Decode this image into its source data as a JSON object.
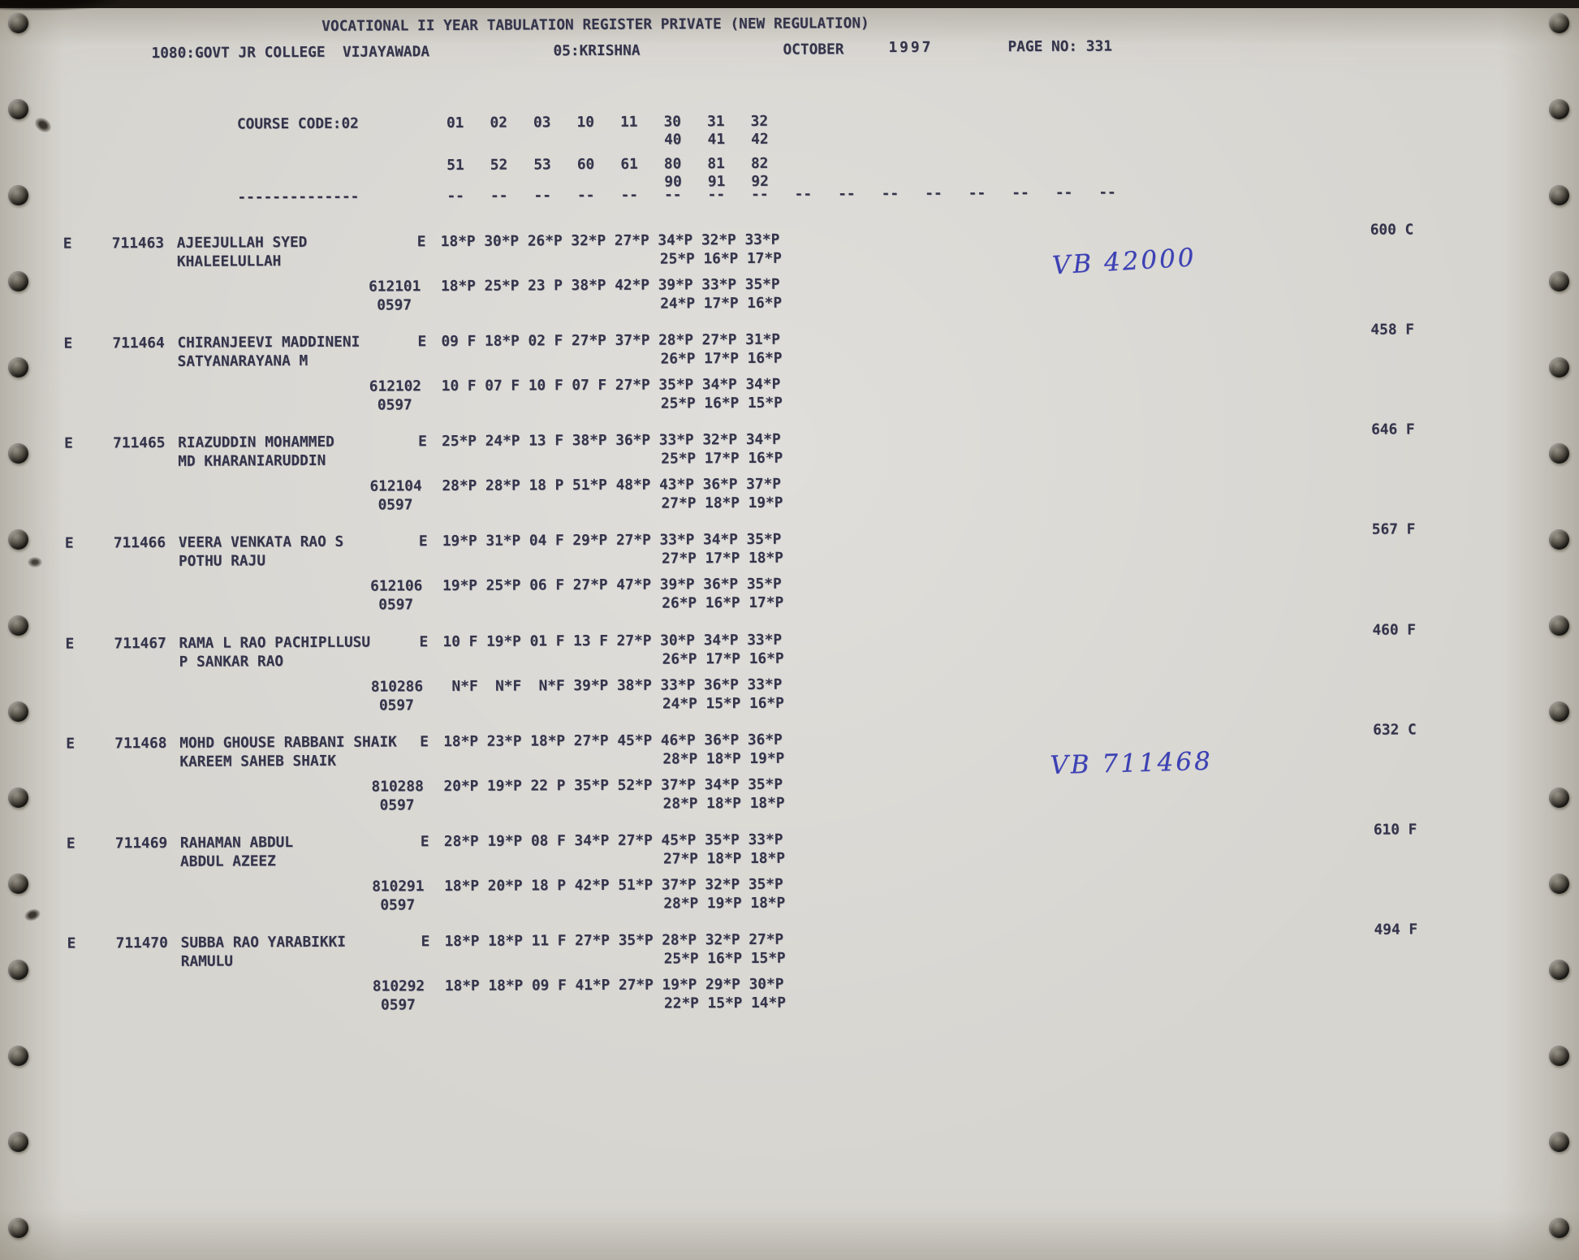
{
  "header": {
    "title": "VOCATIONAL II YEAR TABULATION REGISTER PRIVATE (NEW REGULATION)",
    "college": "1080:GOVT JR COLLEGE  VIJAYAWADA",
    "district": "05:KRISHNA",
    "month": "OCTOBER",
    "year": "1997",
    "page_no": "PAGE NO: 331"
  },
  "course": {
    "label": "COURSE CODE:02",
    "subject_row1": "01   02   03   10   11   30   31   32",
    "subject_row1b": "40   41   42",
    "subject_row2": "51   52   53   60   61   80   81   82",
    "subject_row2b": "90   91   92",
    "separator_left": "--------------",
    "separator_cols": "--   --   --   --   --   --   --   --   --   --   --   --   --   --   --   --"
  },
  "records": [
    {
      "flag": "E",
      "reg_no": "711463",
      "name1": "AJEEJULLAH SYED",
      "name2": "KHALEELULLAH",
      "medium": "E",
      "marks1": "18*P 30*P 26*P 32*P 27*P 34*P 32*P 33*P",
      "marks1b": "25*P 16*P 17*P",
      "reg_no2": "612101",
      "session2": "0597",
      "marks2": "18*P 25*P 23 P 38*P 42*P 39*P 33*P 35*P",
      "marks2b": "24*P 17*P 16*P",
      "total": "600 C"
    },
    {
      "flag": "E",
      "reg_no": "711464",
      "name1": "CHIRANJEEVI MADDINENI",
      "name2": "SATYANARAYANA M",
      "medium": "E",
      "marks1": "09 F 18*P 02 F 27*P 37*P 28*P 27*P 31*P",
      "marks1b": "26*P 17*P 16*P",
      "reg_no2": "612102",
      "session2": "0597",
      "marks2": "10 F 07 F 10 F 07 F 27*P 35*P 34*P 34*P",
      "marks2b": "25*P 16*P 15*P",
      "total": "458 F"
    },
    {
      "flag": "E",
      "reg_no": "711465",
      "name1": "RIAZUDDIN MOHAMMED",
      "name2": "MD KHARANIARUDDIN",
      "medium": "E",
      "marks1": "25*P 24*P 13 F 38*P 36*P 33*P 32*P 34*P",
      "marks1b": "25*P 17*P 16*P",
      "reg_no2": "612104",
      "session2": "0597",
      "marks2": "28*P 28*P 18 P 51*P 48*P 43*P 36*P 37*P",
      "marks2b": "27*P 18*P 19*P",
      "total": "646 F"
    },
    {
      "flag": "E",
      "reg_no": "711466",
      "name1": "VEERA VENKATA RAO S",
      "name2": "POTHU RAJU",
      "medium": "E",
      "marks1": "19*P 31*P 04 F 29*P 27*P 33*P 34*P 35*P",
      "marks1b": "27*P 17*P 18*P",
      "reg_no2": "612106",
      "session2": "0597",
      "marks2": "19*P 25*P 06 F 27*P 47*P 39*P 36*P 35*P",
      "marks2b": "26*P 16*P 17*P",
      "total": "567 F"
    },
    {
      "flag": "E",
      "reg_no": "711467",
      "name1": "RAMA L RAO PACHIPLLUSU",
      "name2": "P SANKAR RAO",
      "medium": "E",
      "marks1": "10 F 19*P 01 F 13 F 27*P 30*P 34*P 33*P",
      "marks1b": "26*P 17*P 16*P",
      "reg_no2": "810286",
      "session2": "0597",
      "marks2": " N*F  N*F  N*F 39*P 38*P 33*P 36*P 33*P",
      "marks2b": "24*P 15*P 16*P",
      "total": "460 F"
    },
    {
      "flag": "E",
      "reg_no": "711468",
      "name1": "MOHD GHOUSE RABBANI SHAIK",
      "name2": "KAREEM SAHEB SHAIK",
      "medium": "E",
      "marks1": "18*P 23*P 18*P 27*P 45*P 46*P 36*P 36*P",
      "marks1b": "28*P 18*P 19*P",
      "reg_no2": "810288",
      "session2": "0597",
      "marks2": "20*P 19*P 22 P 35*P 52*P 37*P 34*P 35*P",
      "marks2b": "28*P 18*P 18*P",
      "total": "632 C"
    },
    {
      "flag": "E",
      "reg_no": "711469",
      "name1": "RAHAMAN ABDUL",
      "name2": "ABDUL AZEEZ",
      "medium": "E",
      "marks1": "28*P 19*P 08 F 34*P 27*P 45*P 35*P 33*P",
      "marks1b": "27*P 18*P 18*P",
      "reg_no2": "810291",
      "session2": "0597",
      "marks2": "18*P 20*P 18 P 42*P 51*P 37*P 32*P 35*P",
      "marks2b": "28*P 19*P 18*P",
      "total": "610 F"
    },
    {
      "flag": "E",
      "reg_no": "711470",
      "name1": "SUBBA RAO YARABIKKI",
      "name2": "RAMULU",
      "medium": "E",
      "marks1": "18*P 18*P 11 F 27*P 35*P 28*P 32*P 27*P",
      "marks1b": "25*P 16*P 15*P",
      "reg_no2": "810292",
      "session2": "0597",
      "marks2": "18*P 18*P 09 F 41*P 27*P 19*P 29*P 30*P",
      "marks2b": "22*P 15*P 14*P",
      "total": "494 F"
    }
  ],
  "annotations": [
    {
      "text": "VB 42000"
    },
    {
      "text": "VB 711468"
    }
  ],
  "colors": {
    "print_ink": "#34344b",
    "pen_ink": "#3c41b4",
    "paper": "#d7d5d0"
  }
}
